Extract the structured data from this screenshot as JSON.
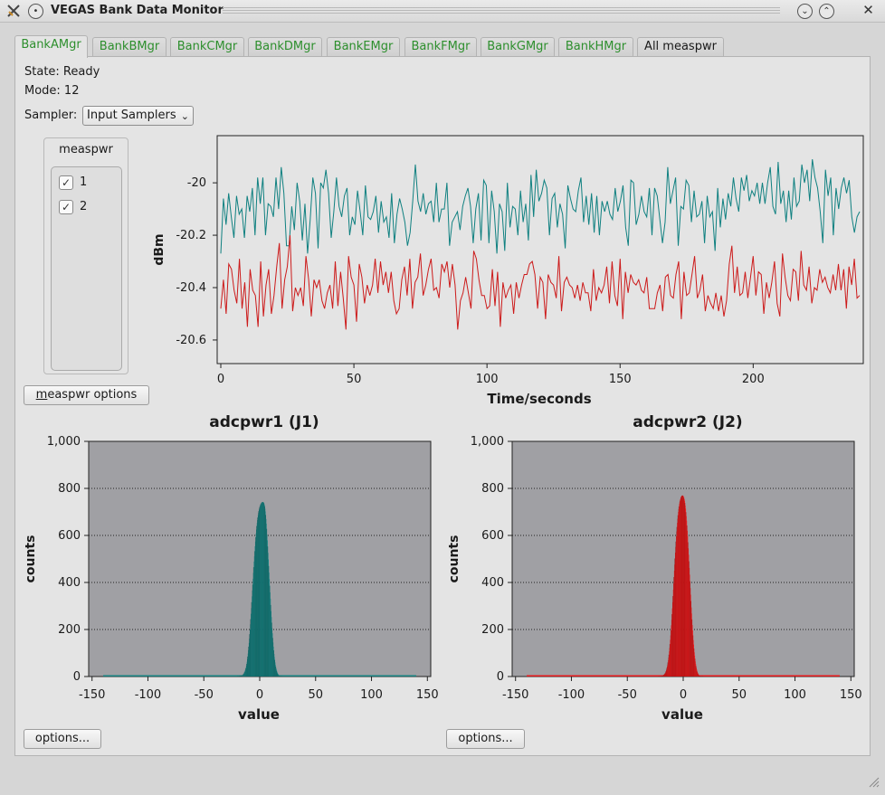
{
  "window": {
    "title": "VEGAS Bank Data Monitor"
  },
  "tabs": [
    "BankAMgr",
    "BankBMgr",
    "BankCMgr",
    "BankDMgr",
    "BankEMgr",
    "BankFMgr",
    "BankGMgr",
    "BankHMgr",
    "All measpwr"
  ],
  "active_tab": "BankAMgr",
  "status": {
    "state": "State: Ready",
    "mode": "Mode: 12"
  },
  "sampler": {
    "label": "Sampler:",
    "value": "Input Samplers"
  },
  "measpwr_group": {
    "title": "measpwr",
    "items": [
      {
        "label": "1",
        "checked": true
      },
      {
        "label": "2",
        "checked": true
      }
    ]
  },
  "buttons": {
    "measpwr_options_mnemonic": "m",
    "measpwr_options_rest": "easpwr options",
    "options": "options..."
  },
  "colors": {
    "series1": "#0f8080",
    "series2": "#cc1a1a",
    "hist1": "#168281",
    "hist2": "#e8191b",
    "plot_bg": "#a0a0a4"
  },
  "chart_data": [
    {
      "type": "line",
      "xlabel": "Time/seconds",
      "ylabel": "dBm",
      "xlim": [
        0,
        240
      ],
      "ylim": [
        -20.69,
        -19.82
      ],
      "x_ticks": [
        "0",
        "50",
        "100",
        "150",
        "200"
      ],
      "y_ticks": [
        "-20",
        "-20.2",
        "-20.4",
        "-20.6"
      ],
      "series": [
        {
          "values": [
            -20.27,
            -20.06,
            -20.16,
            -20.04,
            -20.13,
            -20.21,
            -20.05,
            -20.12,
            -20.1,
            -20.21,
            -20.05,
            -20.11,
            -20.02,
            -20.2,
            -19.98,
            -20.08,
            -19.98,
            -20.2,
            -20.08,
            -20.09,
            -20.13,
            -19.98,
            -20.1,
            -19.94,
            -20.04,
            -20.24,
            -20.24,
            -20.09,
            -20.18,
            -20.0,
            -20.07,
            -20.22,
            -20.08,
            -20.27,
            -20.14,
            -19.98,
            -20.04,
            -20.25,
            -20.0,
            -20.02,
            -19.95,
            -20.04,
            -20.21,
            -20.11,
            -19.98,
            -20.09,
            -20.13,
            -20.05,
            -20.02,
            -20.2,
            -20.13,
            -20.16,
            -20.03,
            -20.11,
            -20.2,
            -20.01,
            -20.13,
            -20.14,
            -20.11,
            -20.05,
            -20.19,
            -20.07,
            -20.15,
            -20.13,
            -20.21,
            -20.04,
            -20.23,
            -20.12,
            -20.06,
            -20.1,
            -20.15,
            -20.24,
            -20.19,
            -20.07,
            -19.93,
            -20.07,
            -20.11,
            -20.04,
            -20.12,
            -20.08,
            -20.07,
            -20.15,
            -20.0,
            -20.15,
            -20.1,
            -20.1,
            -20.0,
            -20.24,
            -20.15,
            -20.13,
            -20.11,
            -20.18,
            -20.09,
            -20.05,
            -20.02,
            -20.09,
            -20.23,
            -20.1,
            -20.04,
            -20.22,
            -19.99,
            -20.01,
            -20.23,
            -20.03,
            -20.11,
            -20.27,
            -20.08,
            -20.11,
            -20.26,
            -20.0,
            -20.17,
            -20.09,
            -20.1,
            -20.2,
            -20.03,
            -20.15,
            -20.08,
            -20.22,
            -19.97,
            -20.13,
            -19.95,
            -20.07,
            -20.04,
            -19.99,
            -20.02,
            -20.2,
            -20.06,
            -20.04,
            -20.17,
            -20.08,
            -20.12,
            -20.25,
            -20.01,
            -20.06,
            -20.1,
            -20.11,
            -20.03,
            -19.98,
            -20.15,
            -20.05,
            -20.16,
            -20.04,
            -20.19,
            -20.05,
            -20.2,
            -20.07,
            -20.11,
            -20.07,
            -20.12,
            -20.14,
            -20.02,
            -20.11,
            -20.07,
            -20.01,
            -20.17,
            -20.24,
            -19.99,
            -20.0,
            -20.16,
            -20.12,
            -20.05,
            -20.11,
            -20.13,
            -20.02,
            -20.2,
            -20.02,
            -20.05,
            -20.14,
            -20.23,
            -20.15,
            -19.94,
            -20.08,
            -20.03,
            -19.98,
            -20.24,
            -20.09,
            -20.1,
            -19.99,
            -20.01,
            -20.15,
            -20.03,
            -20.13,
            -20.12,
            -20.07,
            -20.23,
            -20.05,
            -20.13,
            -20.11,
            -20.26,
            -20.02,
            -20.17,
            -20.06,
            -20.14,
            -20.04,
            -20.09,
            -19.98,
            -20.06,
            -20.11,
            -19.98,
            -20.03,
            -19.97,
            -20.07,
            -20.03,
            -20.05,
            -20.0,
            -20.08,
            -20.0,
            -20.08,
            -20.0,
            -19.94,
            -20.09,
            -20.12,
            -19.92,
            -20.08,
            -20.03,
            -20.15,
            -20.03,
            -20.14,
            -19.98,
            -20.09,
            -20.07,
            -19.93,
            -20.0,
            -19.95,
            -20.07,
            -19.91,
            -19.98,
            -20.02,
            -20.11,
            -20.23,
            -19.95,
            -20.05,
            -19.98,
            -20.2,
            -20.02,
            -20.1,
            -20.02,
            -19.98,
            -20.04,
            -19.99,
            -20.13,
            -20.19,
            -20.13,
            -20.11
          ]
        },
        {
          "values": [
            -20.48,
            -20.37,
            -20.5,
            -20.31,
            -20.33,
            -20.41,
            -20.46,
            -20.29,
            -20.48,
            -20.38,
            -20.55,
            -20.33,
            -20.41,
            -20.43,
            -20.55,
            -20.3,
            -20.51,
            -20.39,
            -20.33,
            -20.5,
            -20.43,
            -20.32,
            -20.23,
            -20.48,
            -20.37,
            -20.32,
            -20.2,
            -20.49,
            -20.4,
            -20.43,
            -20.4,
            -20.47,
            -20.28,
            -20.37,
            -20.51,
            -20.37,
            -20.4,
            -20.37,
            -20.45,
            -20.48,
            -20.42,
            -20.39,
            -20.48,
            -20.3,
            -20.47,
            -20.34,
            -20.44,
            -20.56,
            -20.28,
            -20.36,
            -20.39,
            -20.53,
            -20.31,
            -20.36,
            -20.46,
            -20.39,
            -20.43,
            -20.39,
            -20.29,
            -20.42,
            -20.3,
            -20.39,
            -20.34,
            -20.42,
            -20.34,
            -20.45,
            -20.5,
            -20.48,
            -20.37,
            -20.32,
            -20.43,
            -20.29,
            -20.48,
            -20.38,
            -20.36,
            -20.27,
            -20.43,
            -20.39,
            -20.33,
            -20.29,
            -20.41,
            -20.4,
            -20.44,
            -20.31,
            -20.34,
            -20.3,
            -20.4,
            -20.31,
            -20.39,
            -20.56,
            -20.45,
            -20.42,
            -20.36,
            -20.42,
            -20.48,
            -20.26,
            -20.29,
            -20.37,
            -20.43,
            -20.43,
            -20.48,
            -20.47,
            -20.33,
            -20.47,
            -20.34,
            -20.55,
            -20.38,
            -20.44,
            -20.41,
            -20.39,
            -20.5,
            -20.38,
            -20.44,
            -20.39,
            -20.35,
            -20.35,
            -20.31,
            -20.3,
            -20.35,
            -20.48,
            -20.36,
            -20.38,
            -20.52,
            -20.35,
            -20.38,
            -20.39,
            -20.44,
            -20.28,
            -20.49,
            -20.38,
            -20.36,
            -20.39,
            -20.4,
            -20.44,
            -20.39,
            -20.45,
            -20.38,
            -20.42,
            -20.42,
            -20.49,
            -20.33,
            -20.45,
            -20.4,
            -20.42,
            -20.39,
            -20.32,
            -20.46,
            -20.3,
            -20.43,
            -20.47,
            -20.29,
            -20.52,
            -20.34,
            -20.42,
            -20.35,
            -20.38,
            -20.39,
            -20.37,
            -20.41,
            -20.42,
            -20.36,
            -20.48,
            -20.48,
            -20.48,
            -20.42,
            -20.39,
            -20.49,
            -20.36,
            -20.35,
            -20.43,
            -20.44,
            -20.35,
            -20.3,
            -20.52,
            -20.34,
            -20.43,
            -20.42,
            -20.35,
            -20.28,
            -20.44,
            -20.41,
            -20.35,
            -20.49,
            -20.43,
            -20.46,
            -20.48,
            -20.42,
            -20.49,
            -20.43,
            -20.51,
            -20.45,
            -20.31,
            -20.24,
            -20.42,
            -20.32,
            -20.43,
            -20.42,
            -20.34,
            -20.44,
            -20.36,
            -20.28,
            -20.43,
            -20.34,
            -20.35,
            -20.5,
            -20.38,
            -20.44,
            -20.38,
            -20.3,
            -20.46,
            -20.51,
            -20.27,
            -20.36,
            -20.43,
            -20.45,
            -20.33,
            -20.34,
            -20.45,
            -20.26,
            -20.39,
            -20.41,
            -20.32,
            -20.46,
            -20.4,
            -20.41,
            -20.33,
            -20.38,
            -20.36,
            -20.4,
            -20.42,
            -20.35,
            -20.41,
            -20.31,
            -20.41,
            -20.33,
            -20.48,
            -20.32,
            -20.39,
            -20.29,
            -20.44,
            -20.43
          ]
        }
      ]
    },
    {
      "type": "bar",
      "title": "adcpwr1 (J1)",
      "xlabel": "value",
      "ylabel": "counts",
      "xlim": [
        -153,
        153
      ],
      "ylim": [
        0,
        1000
      ],
      "x_ticks": [
        "-150",
        "-100",
        "-50",
        "0",
        "50",
        "100",
        "150"
      ],
      "y_ticks": [
        "0",
        "200",
        "400",
        "600",
        "800",
        "1,000"
      ],
      "series": [
        {
          "values": [
            1,
            1,
            1,
            1,
            1,
            2,
            2,
            2,
            3,
            3,
            4,
            4,
            5,
            5,
            6,
            6,
            8,
            10,
            12,
            14,
            17,
            20,
            24,
            28,
            34,
            39,
            46,
            54,
            63,
            74,
            85,
            98,
            112,
            127,
            143,
            161,
            180,
            200,
            222,
            244,
            267,
            291,
            316,
            341,
            366,
            391,
            416,
            441,
            465,
            489,
            511,
            533,
            554,
            574,
            592,
            609,
            625,
            640,
            653,
            665,
            676,
            686,
            695,
            703,
            710,
            716,
            721,
            726,
            730,
            733,
            736,
            738,
            740,
            741,
            742,
            742,
            742,
            741,
            739,
            736,
            731,
            724,
            714,
            702,
            687,
            670,
            650,
            628,
            604,
            579,
            553,
            526,
            498,
            470,
            442,
            414,
            386,
            358,
            331,
            304,
            278,
            253,
            229,
            206,
            184,
            164,
            145,
            127,
            111,
            96,
            83,
            71,
            60,
            50,
            42,
            35,
            29,
            24,
            19,
            15,
            12,
            10,
            8,
            6,
            5,
            4,
            3,
            2,
            2,
            1,
            1,
            1,
            1,
            1,
            1
          ]
        }
      ],
      "bin_start": -20,
      "bin_width": 0.3
    },
    {
      "type": "bar",
      "title": "adcpwr2 (J2)",
      "xlabel": "value",
      "ylabel": "counts",
      "xlim": [
        -153,
        153
      ],
      "ylim": [
        0,
        1000
      ],
      "x_ticks": [
        "-150",
        "-100",
        "-50",
        "0",
        "50",
        "100",
        "150"
      ],
      "y_ticks": [
        "0",
        "200",
        "400",
        "600",
        "800",
        "1,000"
      ],
      "series": [
        {
          "values": [
            1,
            1,
            1,
            1,
            1,
            2,
            2,
            2,
            3,
            3,
            4,
            4,
            5,
            6,
            7,
            8,
            9,
            11,
            13,
            15,
            18,
            22,
            26,
            31,
            37,
            43,
            51,
            60,
            70,
            81,
            93,
            107,
            122,
            138,
            156,
            175,
            196,
            218,
            241,
            265,
            290,
            316,
            342,
            369,
            396,
            423,
            450,
            476,
            502,
            527,
            551,
            574,
            596,
            617,
            636,
            654,
            671,
            686,
            700,
            712,
            723,
            733,
            741,
            748,
            754,
            759,
            763,
            766,
            768,
            769,
            770,
            770,
            769,
            767,
            764,
            760,
            754,
            747,
            738,
            727,
            714,
            699,
            682,
            663,
            642,
            620,
            596,
            571,
            545,
            518,
            490,
            462,
            433,
            405,
            376,
            348,
            321,
            294,
            268,
            243,
            219,
            196,
            175,
            155,
            136,
            119,
            103,
            89,
            76,
            64,
            54,
            45,
            37,
            30,
            24,
            19,
            15,
            12,
            9,
            7,
            5,
            4,
            3,
            2,
            2,
            1,
            1,
            1,
            1,
            1,
            1,
            1,
            1,
            1,
            1
          ]
        }
      ],
      "bin_start": -22,
      "bin_width": 0.3
    }
  ]
}
